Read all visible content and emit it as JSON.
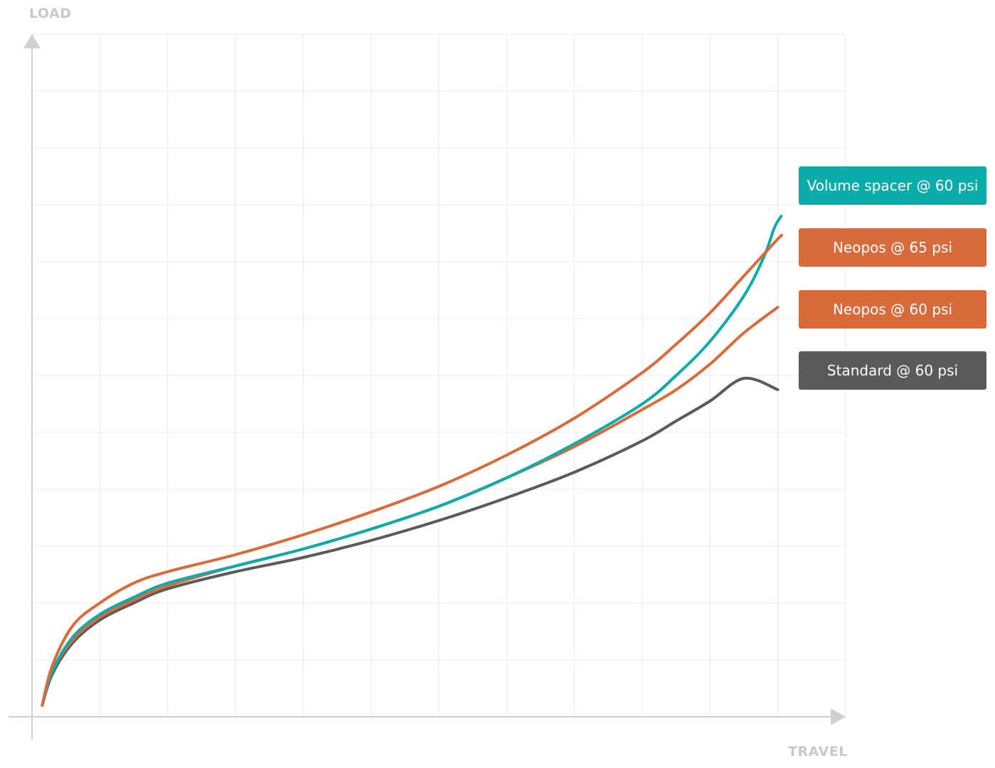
{
  "chart_data": {
    "type": "line",
    "xlabel": "TRAVEL",
    "ylabel": "LOAD",
    "xlim": [
      0,
      12
    ],
    "ylim": [
      0,
      12
    ],
    "grid": true,
    "legend_position": "right",
    "series": [
      {
        "name": "Volume spacer @ 60 psi",
        "color": "#0aaca9",
        "x": [
          0.15,
          0.3,
          0.6,
          1.0,
          1.5,
          2.0,
          3.0,
          4.0,
          5.0,
          6.0,
          7.0,
          8.0,
          9.0,
          9.5,
          10.0,
          10.5,
          10.8,
          10.95,
          11.05
        ],
        "y": [
          0.2,
          0.8,
          1.4,
          1.8,
          2.1,
          2.35,
          2.65,
          2.95,
          3.3,
          3.7,
          4.2,
          4.8,
          5.5,
          6.0,
          6.6,
          7.4,
          8.1,
          8.6,
          8.8
        ]
      },
      {
        "name": "Neopos @ 65 psi",
        "color": "#d96a3a",
        "x": [
          0.15,
          0.3,
          0.6,
          1.0,
          1.5,
          2.0,
          3.0,
          4.0,
          5.0,
          6.0,
          7.0,
          8.0,
          9.0,
          9.5,
          10.0,
          10.5,
          11.0,
          11.05
        ],
        "y": [
          0.2,
          0.9,
          1.6,
          2.0,
          2.35,
          2.55,
          2.85,
          3.2,
          3.6,
          4.05,
          4.6,
          5.25,
          6.05,
          6.55,
          7.1,
          7.75,
          8.4,
          8.45
        ]
      },
      {
        "name": "Neopos @ 60 psi",
        "color": "#d96a3a",
        "x": [
          0.15,
          0.3,
          0.6,
          1.0,
          1.5,
          2.0,
          3.0,
          4.0,
          5.0,
          6.0,
          7.0,
          8.0,
          9.0,
          9.5,
          10.0,
          10.5,
          11.0
        ],
        "y": [
          0.2,
          0.8,
          1.35,
          1.75,
          2.05,
          2.3,
          2.65,
          2.95,
          3.3,
          3.7,
          4.2,
          4.75,
          5.4,
          5.75,
          6.2,
          6.75,
          7.2
        ]
      },
      {
        "name": "Standard @ 60 psi",
        "color": "#5a5a5a",
        "x": [
          0.15,
          0.3,
          0.6,
          1.0,
          1.5,
          2.0,
          3.0,
          4.0,
          5.0,
          6.0,
          7.0,
          8.0,
          9.0,
          9.5,
          10.0,
          10.5,
          11.0
        ],
        "y": [
          0.2,
          0.75,
          1.3,
          1.7,
          2.0,
          2.25,
          2.55,
          2.8,
          3.1,
          3.45,
          3.85,
          4.3,
          4.85,
          5.2,
          5.55,
          5.95,
          5.75
        ]
      }
    ]
  },
  "legend": {
    "items": [
      {
        "label": "Volume spacer @ 60 psi",
        "color": "#0aaca9"
      },
      {
        "label": "Neopos @ 65 psi",
        "color": "#d96a3a"
      },
      {
        "label": "Neopos @ 60 psi",
        "color": "#d96a3a"
      },
      {
        "label": "Standard @ 60 psi",
        "color": "#5a5a5a"
      }
    ]
  },
  "colors": {
    "grid": "#e9e9e9",
    "axis": "#d0d0d0",
    "axis_label": "#c8c8c8"
  }
}
